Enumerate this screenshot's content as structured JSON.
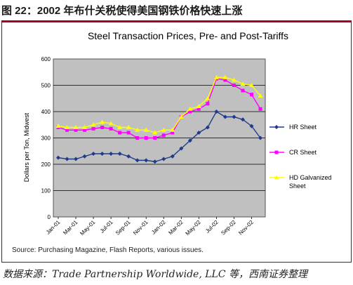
{
  "figure_caption": "图 22：2002 年布什关税使得美国钢铁价格快速上涨",
  "footer_source": "数据来源：Trade Partnership Worldwide, LLC 等，西南证券整理",
  "source_note": "Source:  Purchasing Magazine, Flash Reports, various issues.",
  "colors": {
    "hr": "#1f3a8a",
    "cr": "#ff00ff",
    "hd": "#ffff00",
    "plot_bg": "#c0c0c0"
  },
  "chart_data": {
    "type": "line",
    "title": "Steel Transaction Prices, Pre- and Post-Tariffs",
    "ylabel": "Dollars per Ton, Midwest",
    "xlabel": "",
    "ylim": [
      0,
      600
    ],
    "yticks": [
      0,
      100,
      200,
      300,
      400,
      500,
      600
    ],
    "grid": true,
    "legend_position": "right",
    "x_tick_labels": [
      "Jan-01",
      "Mar-01",
      "May-01",
      "Jul-01",
      "Sep-01",
      "Nov-01",
      "Jan-02",
      "Mar-02",
      "May-02",
      "Jul-02",
      "Sep-02",
      "Nov-02"
    ],
    "x": [
      "Jan-01",
      "Feb-01",
      "Mar-01",
      "Apr-01",
      "May-01",
      "Jun-01",
      "Jul-01",
      "Aug-01",
      "Sep-01",
      "Oct-01",
      "Nov-01",
      "Dec-01",
      "Jan-02",
      "Feb-02",
      "Mar-02",
      "Apr-02",
      "May-02",
      "Jun-02",
      "Jul-02",
      "Aug-02",
      "Sep-02",
      "Oct-02",
      "Nov-02",
      "Dec-02"
    ],
    "series": [
      {
        "name": "HR Sheet",
        "marker": "diamond",
        "values": [
          225,
          220,
          220,
          230,
          240,
          240,
          240,
          240,
          230,
          215,
          215,
          210,
          220,
          230,
          260,
          290,
          320,
          340,
          400,
          380,
          380,
          370,
          345,
          300
        ]
      },
      {
        "name": "CR Sheet",
        "marker": "square",
        "values": [
          340,
          330,
          330,
          330,
          335,
          340,
          335,
          320,
          320,
          300,
          300,
          300,
          310,
          320,
          380,
          400,
          410,
          430,
          525,
          520,
          500,
          480,
          465,
          410
        ]
      },
      {
        "name": "HD Galvanized Sheet",
        "marker": "triangle",
        "values": [
          345,
          340,
          340,
          340,
          350,
          360,
          355,
          340,
          340,
          330,
          330,
          320,
          330,
          330,
          380,
          410,
          420,
          450,
          530,
          530,
          520,
          505,
          500,
          460
        ]
      }
    ]
  }
}
